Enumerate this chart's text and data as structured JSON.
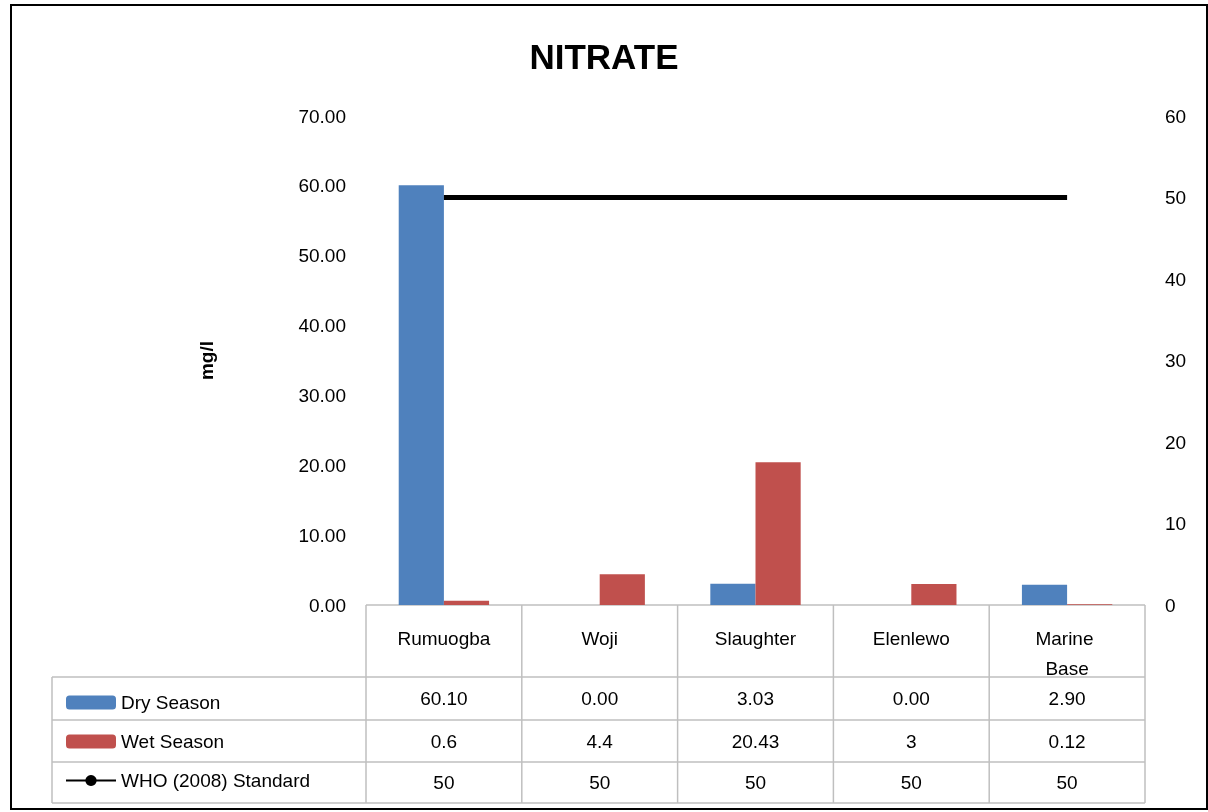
{
  "chart_data": {
    "type": "bar",
    "title": "NITRATE",
    "ylabel": "mg/l",
    "categories": [
      "Rumuogba",
      "Woji",
      "Slaughter",
      "Elenlewo",
      "Marine Base"
    ],
    "series": [
      {
        "name": "Dry Season",
        "color": "#4f81bd",
        "values": [
          60.1,
          0.0,
          3.03,
          0.0,
          2.9
        ],
        "value_labels": [
          "60.10",
          "0.00",
          "3.03",
          "0.00",
          "2.90"
        ]
      },
      {
        "name": "Wet Season",
        "color": "#c0504d",
        "values": [
          0.6,
          4.4,
          20.43,
          3,
          0.12
        ],
        "value_labels": [
          "0.6",
          "4.4",
          "20.43",
          "3",
          "0.12"
        ]
      },
      {
        "name": "WHO (2008) Standard",
        "type": "line",
        "axis": "y2",
        "color": "#000000",
        "values": [
          50,
          50,
          50,
          50,
          50
        ],
        "value_labels": [
          "50",
          "50",
          "50",
          "50",
          "50"
        ]
      }
    ],
    "ylim": [
      0,
      70
    ],
    "yticks": [
      {
        "value": 0,
        "label": "0.00"
      },
      {
        "value": 10,
        "label": "10.00"
      },
      {
        "value": 20,
        "label": "20.00"
      },
      {
        "value": 30,
        "label": "30.00"
      },
      {
        "value": 40,
        "label": "40.00"
      },
      {
        "value": 50,
        "label": "50.00"
      },
      {
        "value": 60,
        "label": "60.00"
      },
      {
        "value": 70,
        "label": "70.00"
      }
    ],
    "y2lim": [
      0,
      60
    ],
    "y2ticks": [
      0,
      10,
      20,
      30,
      40,
      50,
      60
    ],
    "grid": false,
    "legend": "bottom left"
  }
}
